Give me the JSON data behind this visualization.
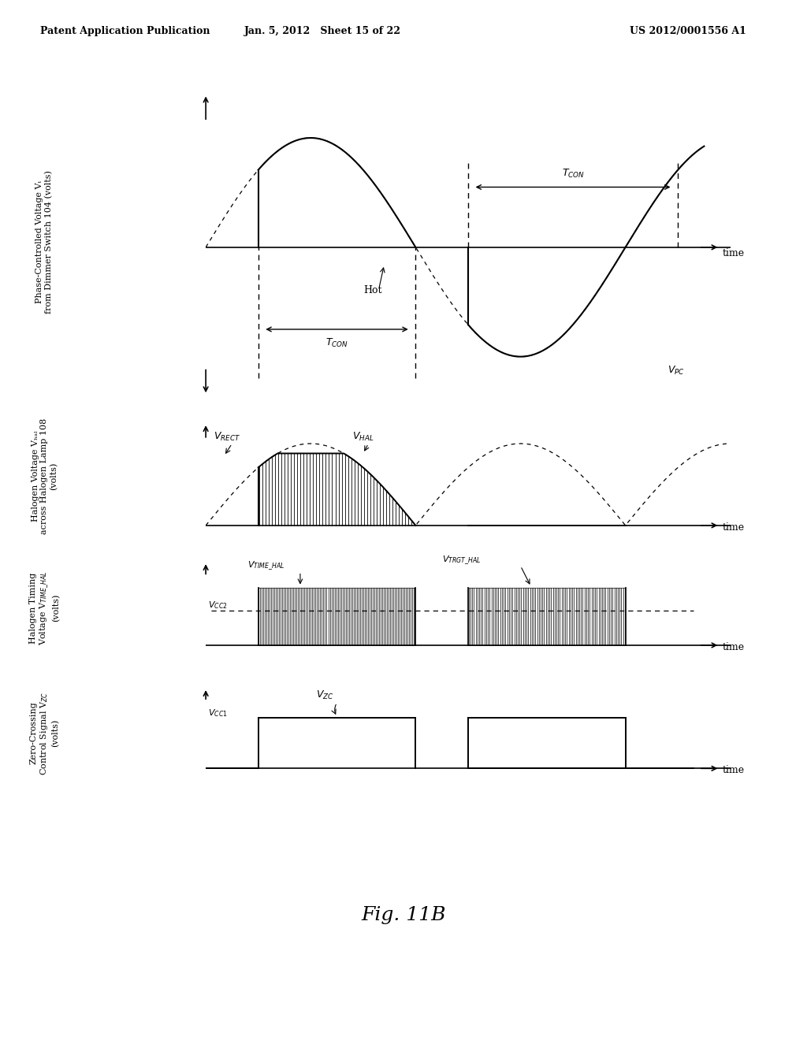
{
  "title_left": "Patent Application Publication",
  "title_center": "Jan. 5, 2012   Sheet 15 of 22",
  "title_right": "US 2012/0001556 A1",
  "fig_label": "Fig. 11B",
  "background_color": "#ffffff"
}
